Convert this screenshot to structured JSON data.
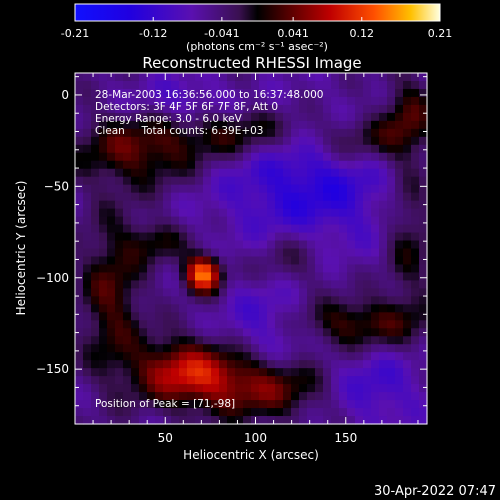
{
  "chart_data": {
    "type": "heatmap",
    "title": "Reconstructed RHESSI Image",
    "xlabel": "Heliocentric X (arcsec)",
    "ylabel": "Heliocentric Y (arcsec)",
    "xlim": [
      0,
      195
    ],
    "ylim": [
      -180,
      12
    ],
    "x_ticks": [
      50,
      100,
      150
    ],
    "y_ticks": [
      0,
      -50,
      -100,
      -150
    ],
    "colorbar": {
      "tick_labels": [
        "-0.21",
        "-0.12",
        "-0.041",
        "0.041",
        "0.12",
        "0.21"
      ],
      "tick_values": [
        -0.21,
        -0.12,
        -0.041,
        0.041,
        0.12,
        0.21
      ],
      "unit_label": "(photons cm⁻² s⁻¹ asec⁻²)",
      "range": [
        -0.21,
        0.21
      ]
    },
    "annotations": [
      "28-Mar-2003 16:36:56.000 to 16:37:48.000",
      "Detectors: 3F 4F 5F 6F 7F 8F, Att 0",
      "Energy Range: 3.0 - 6.0 keV",
      "Clean     Total counts: 6.39E+03"
    ],
    "peak_label": "Position of Peak = [71,-98]",
    "peak": {
      "x": 71,
      "y": -98,
      "value": 0.21
    },
    "emission_regions": [
      {
        "x": 71,
        "y": -98,
        "value": 0.21,
        "sx": 7,
        "sy": 7
      },
      {
        "x": 60,
        "y": -150,
        "value": 0.12,
        "sx": 20,
        "sy": 12
      },
      {
        "x": 100,
        "y": -160,
        "value": 0.1,
        "sx": 30,
        "sy": 12
      },
      {
        "x": 150,
        "y": -125,
        "value": 0.09,
        "sx": 30,
        "sy": 10
      },
      {
        "x": 35,
        "y": -30,
        "value": 0.09,
        "sx": 25,
        "sy": 14
      },
      {
        "x": 90,
        "y": -20,
        "value": 0.08,
        "sx": 25,
        "sy": 10
      },
      {
        "x": 20,
        "y": -110,
        "value": 0.08,
        "sx": 12,
        "sy": 30
      },
      {
        "x": 160,
        "y": -25,
        "value": 0.07,
        "sx": 20,
        "sy": 10
      },
      {
        "x": 185,
        "y": -10,
        "value": 0.07,
        "sx": 10,
        "sy": 15
      },
      {
        "x": 185,
        "y": -75,
        "value": 0.06,
        "sx": 10,
        "sy": 30
      },
      {
        "x": 120,
        "y": -90,
        "value": 0.05,
        "sx": 15,
        "sy": 12
      },
      {
        "x": 45,
        "y": -80,
        "value": 0.06,
        "sx": 12,
        "sy": 8
      },
      {
        "x": 130,
        "y": -50,
        "value": -0.08,
        "sx": 35,
        "sy": 25
      },
      {
        "x": 110,
        "y": -125,
        "value": -0.07,
        "sx": 20,
        "sy": 15
      },
      {
        "x": 60,
        "y": -5,
        "value": -0.05,
        "sx": 20,
        "sy": 10
      },
      {
        "x": 165,
        "y": -160,
        "value": -0.06,
        "sx": 20,
        "sy": 15
      }
    ]
  },
  "footer": {
    "timestamp": "30-Apr-2022 07:47"
  }
}
